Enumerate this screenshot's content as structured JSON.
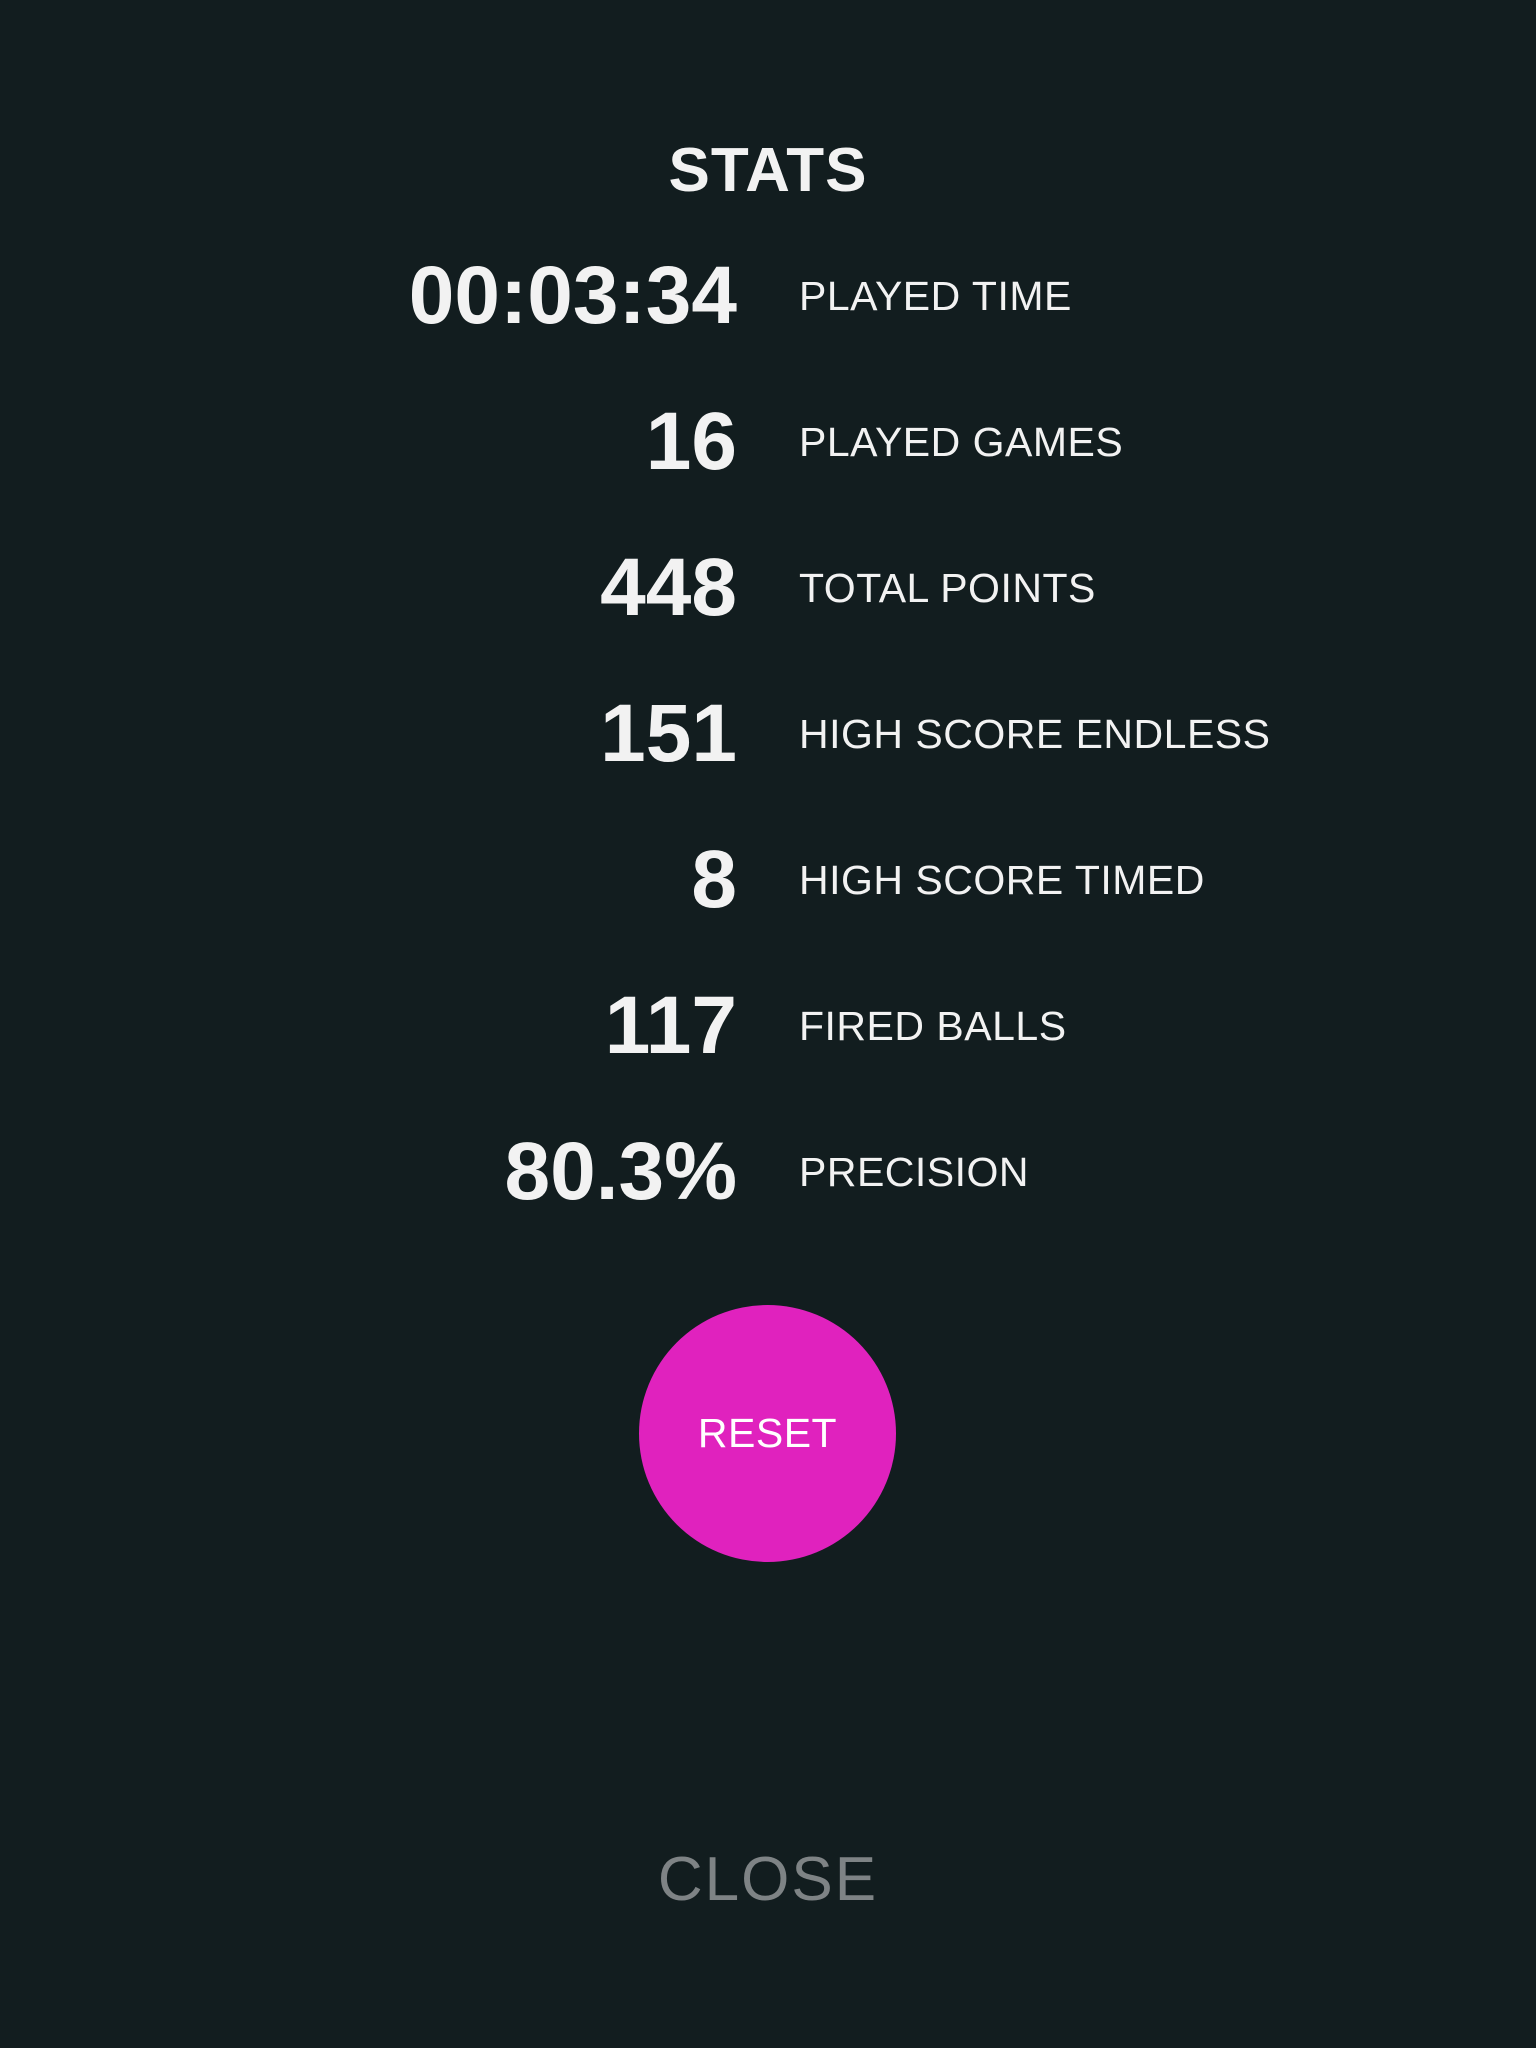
{
  "title": "STATS",
  "stats": [
    {
      "value": "00:03:34",
      "label": "PLAYED TIME"
    },
    {
      "value": "16",
      "label": "PLAYED GAMES"
    },
    {
      "value": "448",
      "label": "TOTAL POINTS"
    },
    {
      "value": "151",
      "label": "HIGH SCORE ENDLESS"
    },
    {
      "value": "8",
      "label": "HIGH SCORE TIMED"
    },
    {
      "value": "117",
      "label": "FIRED BALLS"
    },
    {
      "value": "80.3%",
      "label": "PRECISION"
    }
  ],
  "reset_label": "RESET",
  "close_label": "CLOSE",
  "colors": {
    "background": "#121d1f",
    "text": "#f2f2f2",
    "accent": "#e022be",
    "muted": "#7e8385"
  }
}
